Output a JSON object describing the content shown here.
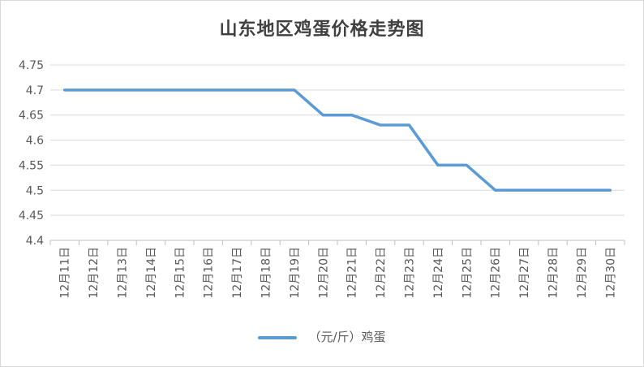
{
  "chart_data": {
    "type": "line",
    "title": "山东地区鸡蛋价格走势图",
    "categories": [
      "12月11日",
      "12月12日",
      "12月13日",
      "12月14日",
      "12月15日",
      "12月16日",
      "12月17日",
      "12月18日",
      "12月19日",
      "12月20日",
      "12月21日",
      "12月22日",
      "12月23日",
      "12月24日",
      "12月25日",
      "12月26日",
      "12月27日",
      "12月28日",
      "12月29日",
      "12月30日"
    ],
    "series": [
      {
        "name": "（元/斤）鸡蛋",
        "color": "#5b9bd5",
        "values": [
          4.7,
          4.7,
          4.7,
          4.7,
          4.7,
          4.7,
          4.7,
          4.7,
          4.7,
          4.65,
          4.65,
          4.63,
          4.63,
          4.55,
          4.55,
          4.5,
          4.5,
          4.5,
          4.5,
          4.5
        ]
      }
    ],
    "y_ticks": [
      "4.4",
      "4.45",
      "4.5",
      "4.55",
      "4.6",
      "4.65",
      "4.7",
      "4.75"
    ],
    "ylim": [
      4.4,
      4.75
    ],
    "grid": true,
    "legend_position": "bottom"
  }
}
